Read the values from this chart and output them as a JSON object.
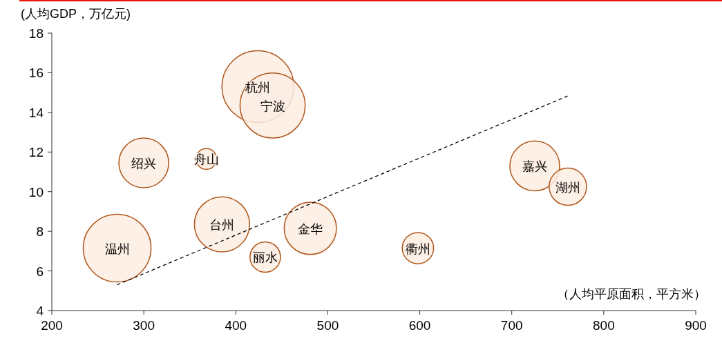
{
  "chart_data": {
    "type": "bubble",
    "ylabel": "(人均GDP，万亿元)",
    "xlabel": "（人均平原面积，平方米）",
    "xlim": [
      200,
      900
    ],
    "xticks": [
      200,
      300,
      400,
      500,
      600,
      700,
      800,
      900
    ],
    "ylim": [
      4,
      18
    ],
    "yticks": [
      4,
      6,
      8,
      10,
      12,
      14,
      16,
      18
    ],
    "grid": false,
    "series": [
      {
        "name": "杭州",
        "color": "#fcede3",
        "x": [
          424
        ],
        "values": [
          15.3
        ],
        "sizes": [
          1
        ]
      },
      {
        "name": "宁波",
        "color": "#fcede3",
        "x": [
          440
        ],
        "values": [
          14.35
        ],
        "sizes": [
          0.82
        ]
      },
      {
        "name": "绍兴",
        "color": "#fcede3",
        "x": [
          300
        ],
        "values": [
          11.45
        ],
        "sizes": [
          0.48
        ]
      },
      {
        "name": "舟山",
        "color": "#fcede3",
        "x": [
          368
        ],
        "values": [
          11.65
        ],
        "sizes": [
          0.083
        ]
      },
      {
        "name": "温州",
        "color": "#fcede3",
        "x": [
          271
        ],
        "values": [
          7.15
        ],
        "sizes": [
          0.89
        ]
      },
      {
        "name": "台州",
        "color": "#fcede3",
        "x": [
          385
        ],
        "values": [
          8.35
        ],
        "sizes": [
          0.59
        ]
      },
      {
        "name": "丽水",
        "color": "#fcede3",
        "x": [
          432
        ],
        "values": [
          6.7
        ],
        "sizes": [
          0.18
        ]
      },
      {
        "name": "金华",
        "color": "#fcede3",
        "x": [
          481
        ],
        "values": [
          8.15
        ],
        "sizes": [
          0.53
        ]
      },
      {
        "name": "衢州",
        "color": "#fcede3",
        "x": [
          598
        ],
        "values": [
          7.15
        ],
        "sizes": [
          0.19
        ]
      },
      {
        "name": "嘉兴",
        "color": "#fcede3",
        "x": [
          725
        ],
        "values": [
          11.3
        ],
        "sizes": [
          0.48
        ]
      },
      {
        "name": "湖州",
        "color": "#fcede3",
        "x": [
          761
        ],
        "values": [
          10.25
        ],
        "sizes": [
          0.27
        ]
      },
      {
        "type": "line",
        "color": "#000000",
        "line_style": "dashed",
        "x": [
          271,
          762
        ],
        "values": [
          5.3,
          14.85
        ]
      }
    ]
  }
}
